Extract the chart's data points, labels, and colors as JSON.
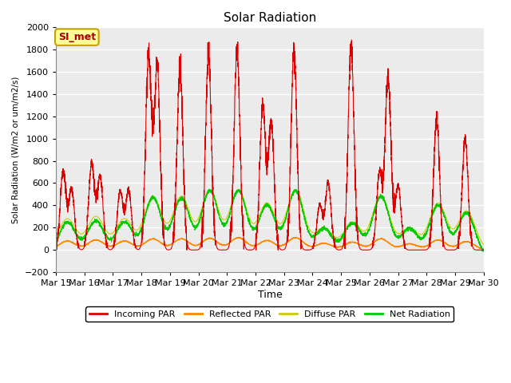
{
  "title": "Solar Radiation",
  "ylabel": "Solar Radiation (W/m2 or um/m2/s)",
  "xlabel": "Time",
  "ylim": [
    -200,
    2000
  ],
  "yticks": [
    -200,
    0,
    200,
    400,
    600,
    800,
    1000,
    1200,
    1400,
    1600,
    1800,
    2000
  ],
  "xtick_labels": [
    "Mar 15",
    "Mar 16",
    "Mar 17",
    "Mar 18",
    "Mar 19",
    "Mar 20",
    "Mar 21",
    "Mar 22",
    "Mar 23",
    "Mar 24",
    "Mar 25",
    "Mar 26",
    "Mar 27",
    "Mar 28",
    "Mar 29",
    "Mar 30"
  ],
  "annotation_text": "SI_met",
  "annotation_bg": "#ffff99",
  "annotation_border": "#c8a000",
  "annotation_text_color": "#aa0000",
  "colors": {
    "incoming": "#dd0000",
    "reflected": "#ff8800",
    "diffuse": "#cccc00",
    "net": "#00cc00"
  },
  "legend": [
    "Incoming PAR",
    "Reflected PAR",
    "Diffuse PAR",
    "Net Radiation"
  ],
  "plot_bg": "#ebebeb"
}
